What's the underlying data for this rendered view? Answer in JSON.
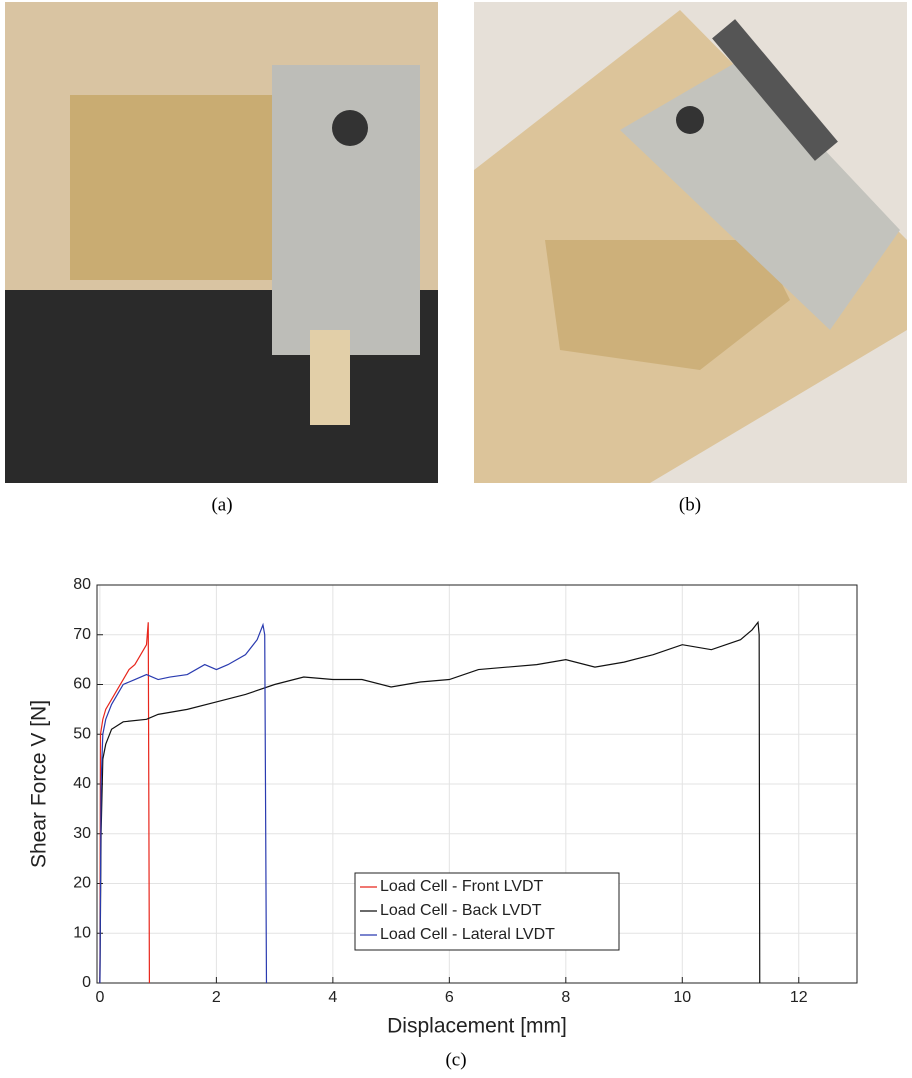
{
  "figure": {
    "captions": [
      "(a)",
      "(b)",
      "(c)"
    ]
  },
  "chart_data": {
    "type": "line",
    "xlabel": "Displacement [mm]",
    "ylabel": "Shear Force V [N]",
    "xlim": [
      -0.05,
      13
    ],
    "ylim": [
      0,
      80
    ],
    "xticks": [
      0,
      2,
      4,
      6,
      8,
      10,
      12
    ],
    "yticks": [
      0,
      10,
      20,
      30,
      40,
      50,
      60,
      70,
      80
    ],
    "grid": true,
    "legend": "lower center",
    "series": [
      {
        "name": "Load Cell - Front LVDT",
        "color": "#e8261c",
        "x": [
          0,
          0.01,
          0.05,
          0.1,
          0.2,
          0.3,
          0.4,
          0.5,
          0.6,
          0.7,
          0.8,
          0.83,
          0.85
        ],
        "values": [
          0,
          50,
          53,
          55,
          57,
          59,
          61,
          63,
          64,
          66,
          68,
          72.5,
          0
        ]
      },
      {
        "name": "Load Cell - Back LVDT",
        "color": "#111111",
        "x": [
          0,
          0.02,
          0.05,
          0.1,
          0.2,
          0.4,
          0.8,
          1,
          1.5,
          2,
          2.5,
          3,
          3.5,
          4,
          4.5,
          5,
          5.5,
          6,
          6.5,
          7,
          7.5,
          8,
          8.5,
          9,
          9.5,
          10,
          10.5,
          11,
          11.2,
          11.3,
          11.32,
          11.33
        ],
        "values": [
          0,
          30,
          45,
          48,
          51,
          52.5,
          53,
          54,
          55,
          56.5,
          58,
          60,
          61.5,
          61,
          61,
          59.5,
          60.5,
          61,
          63,
          63.5,
          64,
          65,
          63.5,
          64.5,
          66,
          68,
          67,
          69,
          71,
          72.5,
          70,
          0
        ]
      },
      {
        "name": "Load Cell - Lateral LVDT",
        "color": "#2a3bb0",
        "x": [
          0,
          0.02,
          0.05,
          0.1,
          0.2,
          0.4,
          0.6,
          0.8,
          1,
          1.2,
          1.5,
          1.8,
          2,
          2.2,
          2.5,
          2.7,
          2.8,
          2.83,
          2.86
        ],
        "values": [
          0,
          40,
          50,
          53,
          56,
          60,
          61,
          62,
          61,
          61.5,
          62,
          64,
          63,
          64,
          66,
          69,
          72,
          70,
          0
        ]
      }
    ]
  }
}
